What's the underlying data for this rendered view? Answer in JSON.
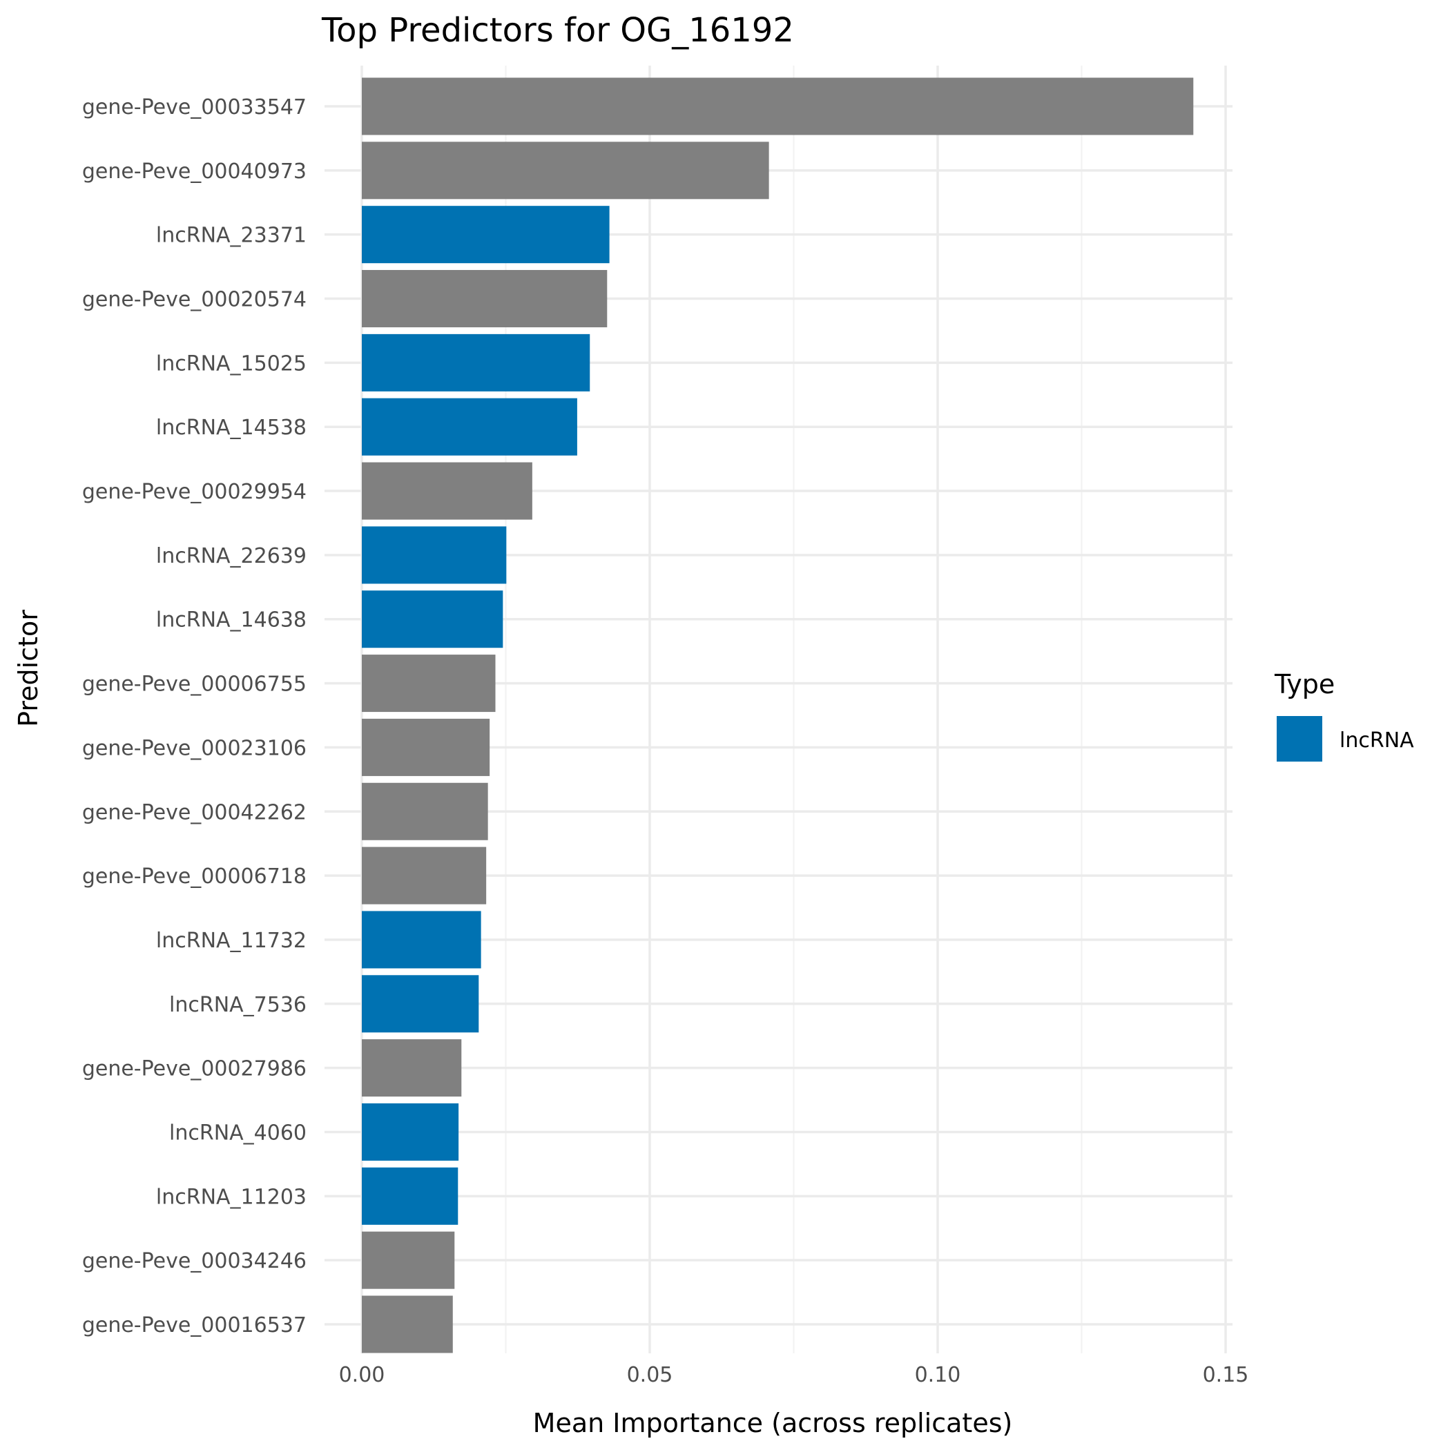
{
  "chart_data": {
    "type": "bar",
    "orientation": "horizontal",
    "title": "Top Predictors for OG_16192",
    "xlabel": "Mean Importance (across replicates)",
    "ylabel": "Predictor",
    "xlim": [
      0,
      0.15
    ],
    "x_ticks": [
      0,
      0.05,
      0.1,
      0.15
    ],
    "x_tick_labels": [
      "0.00",
      "0.05",
      "0.10",
      "0.15"
    ],
    "grid": true,
    "legend": {
      "title": "Type",
      "placement": "right",
      "entries": [
        {
          "label": "lncRNA",
          "color": "#0072B2"
        }
      ]
    },
    "colors": {
      "gene": "#808080",
      "lncRNA": "#0072B2"
    },
    "categories": [
      "gene-Peve_00033547",
      "gene-Peve_00040973",
      "lncRNA_23371",
      "gene-Peve_00020574",
      "lncRNA_15025",
      "lncRNA_14538",
      "gene-Peve_00029954",
      "lncRNA_22639",
      "lncRNA_14638",
      "gene-Peve_00006755",
      "gene-Peve_00023106",
      "gene-Peve_00042262",
      "gene-Peve_00006718",
      "lncRNA_11732",
      "lncRNA_7536",
      "gene-Peve_00027986",
      "lncRNA_4060",
      "lncRNA_11203",
      "gene-Peve_00034246",
      "gene-Peve_00016537"
    ],
    "types": [
      "gene",
      "gene",
      "lncRNA",
      "gene",
      "lncRNA",
      "lncRNA",
      "gene",
      "lncRNA",
      "lncRNA",
      "gene",
      "gene",
      "gene",
      "gene",
      "lncRNA",
      "lncRNA",
      "gene",
      "lncRNA",
      "lncRNA",
      "gene",
      "gene"
    ],
    "values": [
      0.1444,
      0.0707,
      0.043,
      0.0426,
      0.0396,
      0.0374,
      0.0296,
      0.0251,
      0.0245,
      0.0232,
      0.0222,
      0.0219,
      0.0216,
      0.0207,
      0.0203,
      0.0173,
      0.0168,
      0.0167,
      0.0161,
      0.0158
    ]
  }
}
